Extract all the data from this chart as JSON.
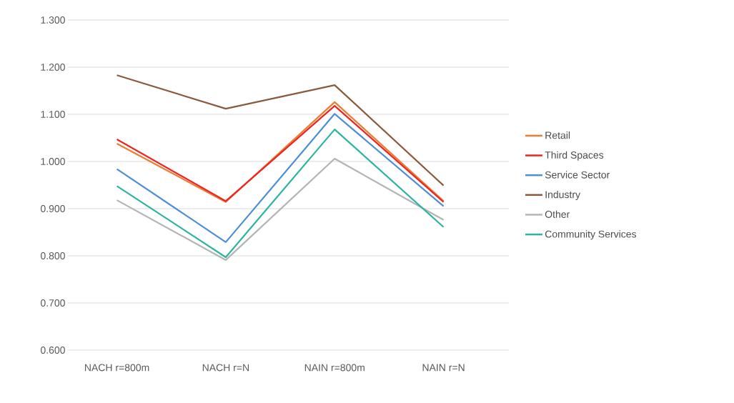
{
  "chart_data": {
    "type": "line",
    "categories": [
      "NACH r=800m",
      "NACH r=N",
      "NAIN r=800m",
      "NAIN r=N"
    ],
    "series": [
      {
        "name": "Retail",
        "color": "#ed7d31",
        "values": [
          1.038,
          0.914,
          1.126,
          0.916
        ]
      },
      {
        "name": "Third Spaces",
        "color": "#ee2424",
        "values": [
          1.047,
          0.916,
          1.118,
          0.914
        ]
      },
      {
        "name": "Service Sector",
        "color": "#4a8fd8",
        "values": [
          0.984,
          0.829,
          1.101,
          0.905
        ]
      },
      {
        "name": "Industry",
        "color": "#8b5a3c",
        "values": [
          1.183,
          1.112,
          1.162,
          0.949
        ]
      },
      {
        "name": "Other",
        "color": "#b4b4b4",
        "values": [
          0.918,
          0.791,
          1.006,
          0.876
        ]
      },
      {
        "name": "Community Services",
        "color": "#2bb5a0",
        "values": [
          0.948,
          0.797,
          1.068,
          0.861
        ]
      }
    ],
    "ylim": [
      0.6,
      1.3
    ],
    "yticks": [
      {
        "value": 0.6,
        "label": "0.600"
      },
      {
        "value": 0.7,
        "label": "0.700"
      },
      {
        "value": 0.8,
        "label": "0.800"
      },
      {
        "value": 0.9,
        "label": "0.900"
      },
      {
        "value": 1.0,
        "label": "1.000"
      },
      {
        "value": 1.1,
        "label": "1.100"
      },
      {
        "value": 1.2,
        "label": "1.200"
      },
      {
        "value": 1.3,
        "label": "1.300"
      }
    ],
    "grid": "y",
    "legend": "right",
    "marker": "none",
    "line_style": "solid"
  }
}
